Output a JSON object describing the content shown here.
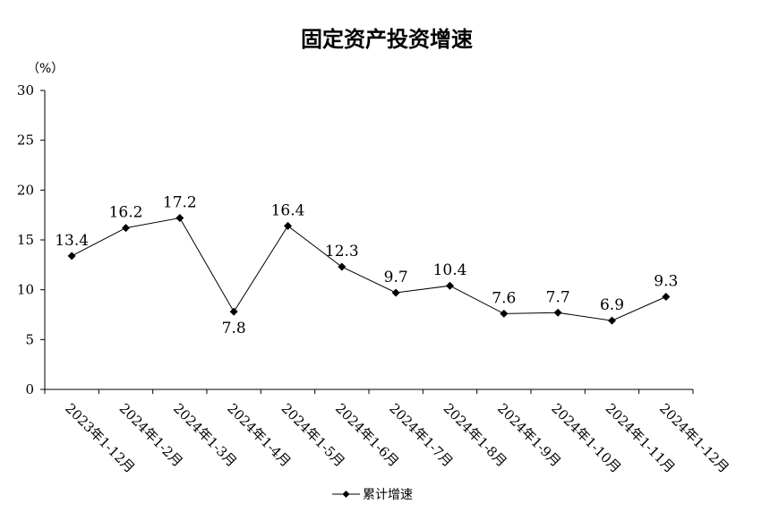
{
  "chart_data": {
    "type": "line",
    "title": "固定资产投资增速",
    "unit_label": "（%）",
    "categories": [
      "2023年1-12月",
      "2024年1-2月",
      "2024年1-3月",
      "2024年1-4月",
      "2024年1-5月",
      "2024年1-6月",
      "2024年1-7月",
      "2024年1-8月",
      "2024年1-9月",
      "2024年1-10月",
      "2024年1-11月",
      "2024年1-12月"
    ],
    "series": [
      {
        "name": "累计增速",
        "values": [
          13.4,
          16.2,
          17.2,
          7.8,
          16.4,
          12.3,
          9.7,
          10.4,
          7.6,
          7.7,
          6.9,
          9.3
        ],
        "data_labels": [
          "13.4",
          "16.2",
          "17.2",
          "7.8",
          "16.4",
          "12.3",
          "9.7",
          "10.4",
          "7.6",
          "7.7",
          "6.9",
          "9.3"
        ],
        "marker": "diamond",
        "color": "#000000"
      }
    ],
    "y_ticks": [
      "0",
      "5",
      "10",
      "15",
      "20",
      "25",
      "30"
    ],
    "ylim": [
      0,
      30
    ],
    "grid": false,
    "legend_position": "bottom"
  }
}
